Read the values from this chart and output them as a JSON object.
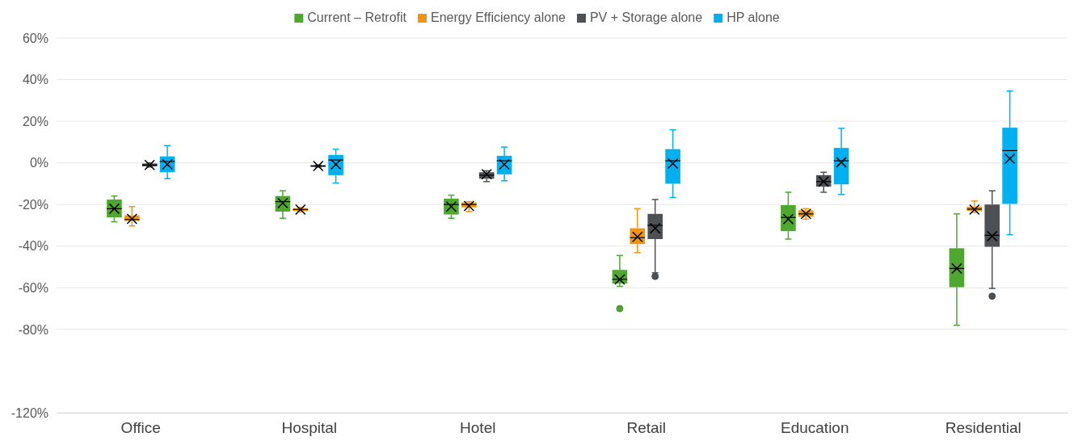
{
  "chart_data": {
    "type": "box",
    "categories": [
      "Office",
      "Hospital",
      "Hotel",
      "Retail",
      "Education",
      "Residential"
    ],
    "ylim": [
      -120,
      60
    ],
    "yticks": [
      {
        "value": 60,
        "label": "60%"
      },
      {
        "value": 40,
        "label": "40%"
      },
      {
        "value": 20,
        "label": "20%"
      },
      {
        "value": 0,
        "label": "0%"
      },
      {
        "value": -20,
        "label": "-20%"
      },
      {
        "value": -40,
        "label": "-40%"
      },
      {
        "value": -60,
        "label": "-60%"
      },
      {
        "value": -80,
        "label": "-80%"
      },
      {
        "value": -120,
        "label": "-120%"
      }
    ],
    "grid": "y",
    "legend": "top",
    "series": [
      {
        "name": "Current – Retrofit",
        "color": "#4ea72e",
        "boxes": [
          {
            "low": -28.3,
            "q1": -26.2,
            "median": -22,
            "q3": -17.6,
            "high": -15.9,
            "mean": -22
          },
          {
            "low": -26.6,
            "q1": -23.4,
            "median": -18.6,
            "q3": -15.9,
            "high": -13.4,
            "mean": -19.3
          },
          {
            "low": -26.6,
            "q1": -24.8,
            "median": -20,
            "q3": -17.2,
            "high": -15.5,
            "mean": -21
          },
          {
            "low": -59.3,
            "q1": -57.9,
            "median": -55.9,
            "q3": -51.4,
            "high": -44.5,
            "mean": -56,
            "outliers": [
              -70
            ]
          },
          {
            "low": -36.6,
            "q1": -32.8,
            "median": -26.2,
            "q3": -20.3,
            "high": -14.1,
            "mean": -27
          },
          {
            "low": -78,
            "q1": -59.7,
            "median": -50.7,
            "q3": -41,
            "high": -24.5,
            "mean": -50.7
          }
        ]
      },
      {
        "name": "Energy Efficiency alone",
        "color": "#f0960e",
        "boxes": [
          {
            "low": -30.3,
            "q1": -27.9,
            "median": -27.2,
            "q3": -25.2,
            "high": -21,
            "mean": -26.9
          },
          {
            "low": -23.4,
            "q1": -23.1,
            "median": -22.4,
            "q3": -21.7,
            "high": -21.4,
            "mean": -22.4
          },
          {
            "low": -23.4,
            "q1": -21.4,
            "median": -20,
            "q3": -19,
            "high": -18.6,
            "mean": -20.7
          },
          {
            "low": -43.1,
            "q1": -39,
            "median": -35.9,
            "q3": -31.4,
            "high": -22,
            "mean": -35.5
          },
          {
            "low": -27,
            "q1": -25.9,
            "median": -24.5,
            "q3": -22.8,
            "high": -22,
            "mean": -24.5
          },
          {
            "low": -23.8,
            "q1": -23.1,
            "median": -22.2,
            "q3": -21,
            "high": -18.3,
            "mean": -22.4
          }
        ]
      },
      {
        "name": "PV + Storage alone",
        "color": "#4d5156",
        "boxes": [
          {
            "low": -2,
            "q1": -1.7,
            "median": -1,
            "q3": -0.3,
            "high": 0,
            "mean": -1
          },
          {
            "low": -2,
            "q1": -1.9,
            "median": -1.5,
            "q3": -1.1,
            "high": -1,
            "mean": -1.5
          },
          {
            "low": -9,
            "q1": -7.6,
            "median": -5.9,
            "q3": -4.5,
            "high": -3.8,
            "mean": -5.5
          },
          {
            "low": -52.8,
            "q1": -36.6,
            "median": -30,
            "q3": -24.5,
            "high": -17.6,
            "mean": -31.4,
            "outliers": [
              -54.5
            ]
          },
          {
            "low": -14.1,
            "q1": -11.4,
            "median": -9,
            "q3": -5.9,
            "high": -4.5,
            "mean": -9
          },
          {
            "low": -60.3,
            "q1": -40.3,
            "median": -34.8,
            "q3": -20,
            "high": -13.4,
            "mean": -35.2,
            "outliers": [
              -64
            ]
          }
        ]
      },
      {
        "name": "HP alone",
        "color": "#00b0f0",
        "boxes": [
          {
            "low": -7.6,
            "q1": -4.5,
            "median": 0.7,
            "q3": 3.1,
            "high": 8.3,
            "mean": -0.7
          },
          {
            "low": -9.7,
            "q1": -5.9,
            "median": 1.4,
            "q3": 3.8,
            "high": 6.6,
            "mean": -0.7
          },
          {
            "low": -8.6,
            "q1": -5.5,
            "median": 1,
            "q3": 3.4,
            "high": 7.6,
            "mean": -0.7
          },
          {
            "low": -16.6,
            "q1": -10,
            "median": 1,
            "q3": 6.6,
            "high": 15.9,
            "mean": -0.3
          },
          {
            "low": -15.2,
            "q1": -10.3,
            "median": 1,
            "q3": 7.2,
            "high": 16.6,
            "mean": 0.3
          },
          {
            "low": -34.5,
            "q1": -19.7,
            "median": 5.9,
            "q3": 16.9,
            "high": 34.5,
            "mean": 2
          }
        ]
      }
    ]
  }
}
